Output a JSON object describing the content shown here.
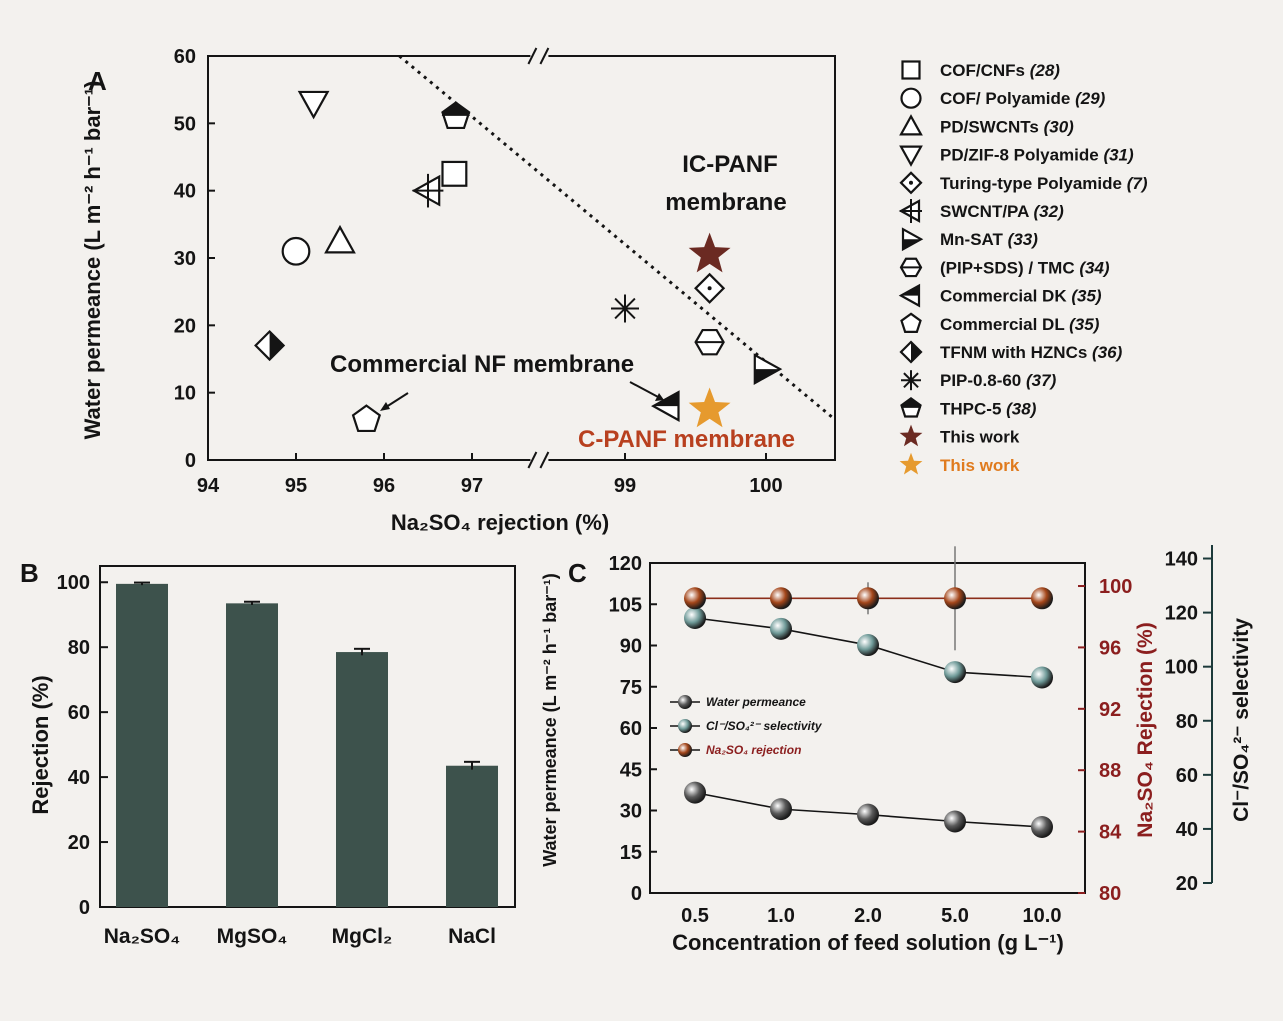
{
  "panel_labels": {
    "a": "A",
    "b": "B",
    "c": "C"
  },
  "chart_data": [
    {
      "type": "scatter",
      "panel": "A",
      "xlabel": "Na₂SO₄ rejection (%)",
      "ylabel": "Water permeance (L m⁻² h⁻¹ bar⁻¹)",
      "xlim": [
        94,
        100.5
      ],
      "x_axis_break": [
        97.3,
        98.8
      ],
      "ylim": [
        0,
        60
      ],
      "xticks": [
        "94",
        "95",
        "96",
        "97",
        "99",
        "100"
      ],
      "yticks": [
        "0",
        "10",
        "20",
        "30",
        "40",
        "50",
        "60"
      ],
      "series": [
        {
          "name": "COF/CNFs",
          "ref": "(28)",
          "marker": "square",
          "color": "#ffffff",
          "points": [
            [
              96.8,
              42.5
            ]
          ]
        },
        {
          "name": "COF/ Polyamide",
          "ref": "(29)",
          "marker": "circle",
          "color": "#ffffff",
          "points": [
            [
              95.0,
              31.0
            ]
          ]
        },
        {
          "name": "PD/SWCNTs",
          "ref": "(30)",
          "marker": "triangle-up",
          "color": "#ffffff",
          "points": [
            [
              95.5,
              32.5
            ]
          ]
        },
        {
          "name": "PD/ZIF-8 Polyamide",
          "ref": "(31)",
          "marker": "triangle-down",
          "color": "#ffffff",
          "points": [
            [
              95.2,
              53.0
            ]
          ]
        },
        {
          "name": "Turing-type Polyamide",
          "ref": "(7)",
          "marker": "diamond-dot",
          "color": "#ffffff",
          "points": [
            [
              99.6,
              25.5
            ]
          ]
        },
        {
          "name": "SWCNT/PA",
          "ref": "(32)",
          "marker": "triangle-left-cross",
          "color": "#ffffff",
          "points": [
            [
              96.5,
              40.0
            ]
          ]
        },
        {
          "name": "Mn-SAT",
          "ref": "(33)",
          "marker": "triangle-right-half",
          "color": "#141414",
          "points": [
            [
              100.0,
              13.5
            ]
          ]
        },
        {
          "name": "(PIP+SDS) / TMC",
          "ref": "(34)",
          "marker": "hexagon-line",
          "color": "#ffffff",
          "points": [
            [
              99.6,
              17.5
            ]
          ]
        },
        {
          "name": "Commercial DK",
          "ref": "(35)",
          "marker": "triangle-left-half",
          "color": "#141414",
          "points": [
            [
              99.3,
              8.0
            ]
          ]
        },
        {
          "name": "Commercial DL",
          "ref": "(35)",
          "marker": "pentagon",
          "color": "#ffffff",
          "points": [
            [
              95.8,
              6.0
            ]
          ]
        },
        {
          "name": "TFNM with HZNCs",
          "ref": "(36)",
          "marker": "diamond-half",
          "color": "#141414",
          "points": [
            [
              94.7,
              17.0
            ]
          ]
        },
        {
          "name": "PIP-0.8-60",
          "ref": "(37)",
          "marker": "asterisk",
          "color": "#141414",
          "points": [
            [
              99.0,
              22.5
            ]
          ]
        },
        {
          "name": "THPC-5",
          "ref": "(38)",
          "marker": "pentagon-half",
          "color": "#141414",
          "points": [
            [
              97.8,
              51.0
            ]
          ]
        },
        {
          "name": "This work",
          "ref": "",
          "marker": "star",
          "color": "#6b2a22",
          "points": [
            [
              99.6,
              30.5
            ]
          ]
        },
        {
          "name": "This work",
          "ref": "",
          "marker": "star",
          "color": "#e69a2e",
          "points": [
            [
              99.6,
              7.5
            ]
          ]
        }
      ],
      "trend_line": [
        [
          97.4,
          60
        ],
        [
          100.5,
          6
        ]
      ],
      "annotations": [
        {
          "text": "IC-PANF",
          "color": "#141414"
        },
        {
          "text": "membrane",
          "color": "#141414"
        },
        {
          "text": "Commercial  NF membrane",
          "color": "#141414"
        },
        {
          "text": "C-PANF membrane",
          "color": "#b8401f"
        }
      ]
    },
    {
      "type": "bar",
      "panel": "B",
      "ylabel": "Rejection (%)",
      "categories": [
        "Na₂SO₄",
        "MgSO₄",
        "MgCl₂",
        "NaCl"
      ],
      "values": [
        99.5,
        93.5,
        78.5,
        43.5
      ],
      "errors": [
        0.4,
        0.5,
        1.0,
        1.2
      ],
      "ylim": [
        0,
        105
      ],
      "yticks": [
        "0",
        "20",
        "40",
        "60",
        "80",
        "100"
      ],
      "bar_color": "#3d524c"
    },
    {
      "type": "line",
      "panel": "C",
      "xlabel": "Concentration of feed solution (g L⁻¹)",
      "categories": [
        "0.5",
        "1.0",
        "2.0",
        "5.0",
        "10.0"
      ],
      "y_left": {
        "label": "Water permeance (L m⁻² h⁻¹ bar⁻¹)",
        "lim": [
          0,
          120
        ],
        "ticks": [
          "0",
          "15",
          "30",
          "45",
          "60",
          "75",
          "90",
          "105",
          "120"
        ]
      },
      "y_right1": {
        "label": "Na₂SO₄ Rejection (%)",
        "lim": [
          80,
          101.5
        ],
        "ticks": [
          "80",
          "84",
          "88",
          "92",
          "96",
          "100"
        ],
        "color": "#8b1e1e"
      },
      "y_right2": {
        "label": "Cl⁻/SO₄²⁻ selectivity",
        "lim": [
          20,
          145
        ],
        "ticks": [
          "20",
          "40",
          "60",
          "80",
          "100",
          "120",
          "140"
        ],
        "color": "#1c3a3a"
      },
      "series": [
        {
          "name": "Water permeance",
          "axis": "left",
          "values": [
            36.5,
            30.5,
            28.5,
            26.0,
            24.0
          ],
          "color": "#5a5a5a"
        },
        {
          "name": "Cl⁻/SO₄²⁻ selectivity",
          "axis": "right2",
          "values": [
            118,
            114,
            108,
            98,
            96
          ],
          "color": "#6f9a98"
        },
        {
          "name": "Na₂SO₄ rejection",
          "axis": "right1",
          "values": [
            99.2,
            99.2,
            99.2,
            99.2,
            99.2
          ],
          "errors": [
            0,
            0,
            0.4,
            1.3,
            0
          ],
          "color": "#a4461a"
        }
      ]
    }
  ]
}
